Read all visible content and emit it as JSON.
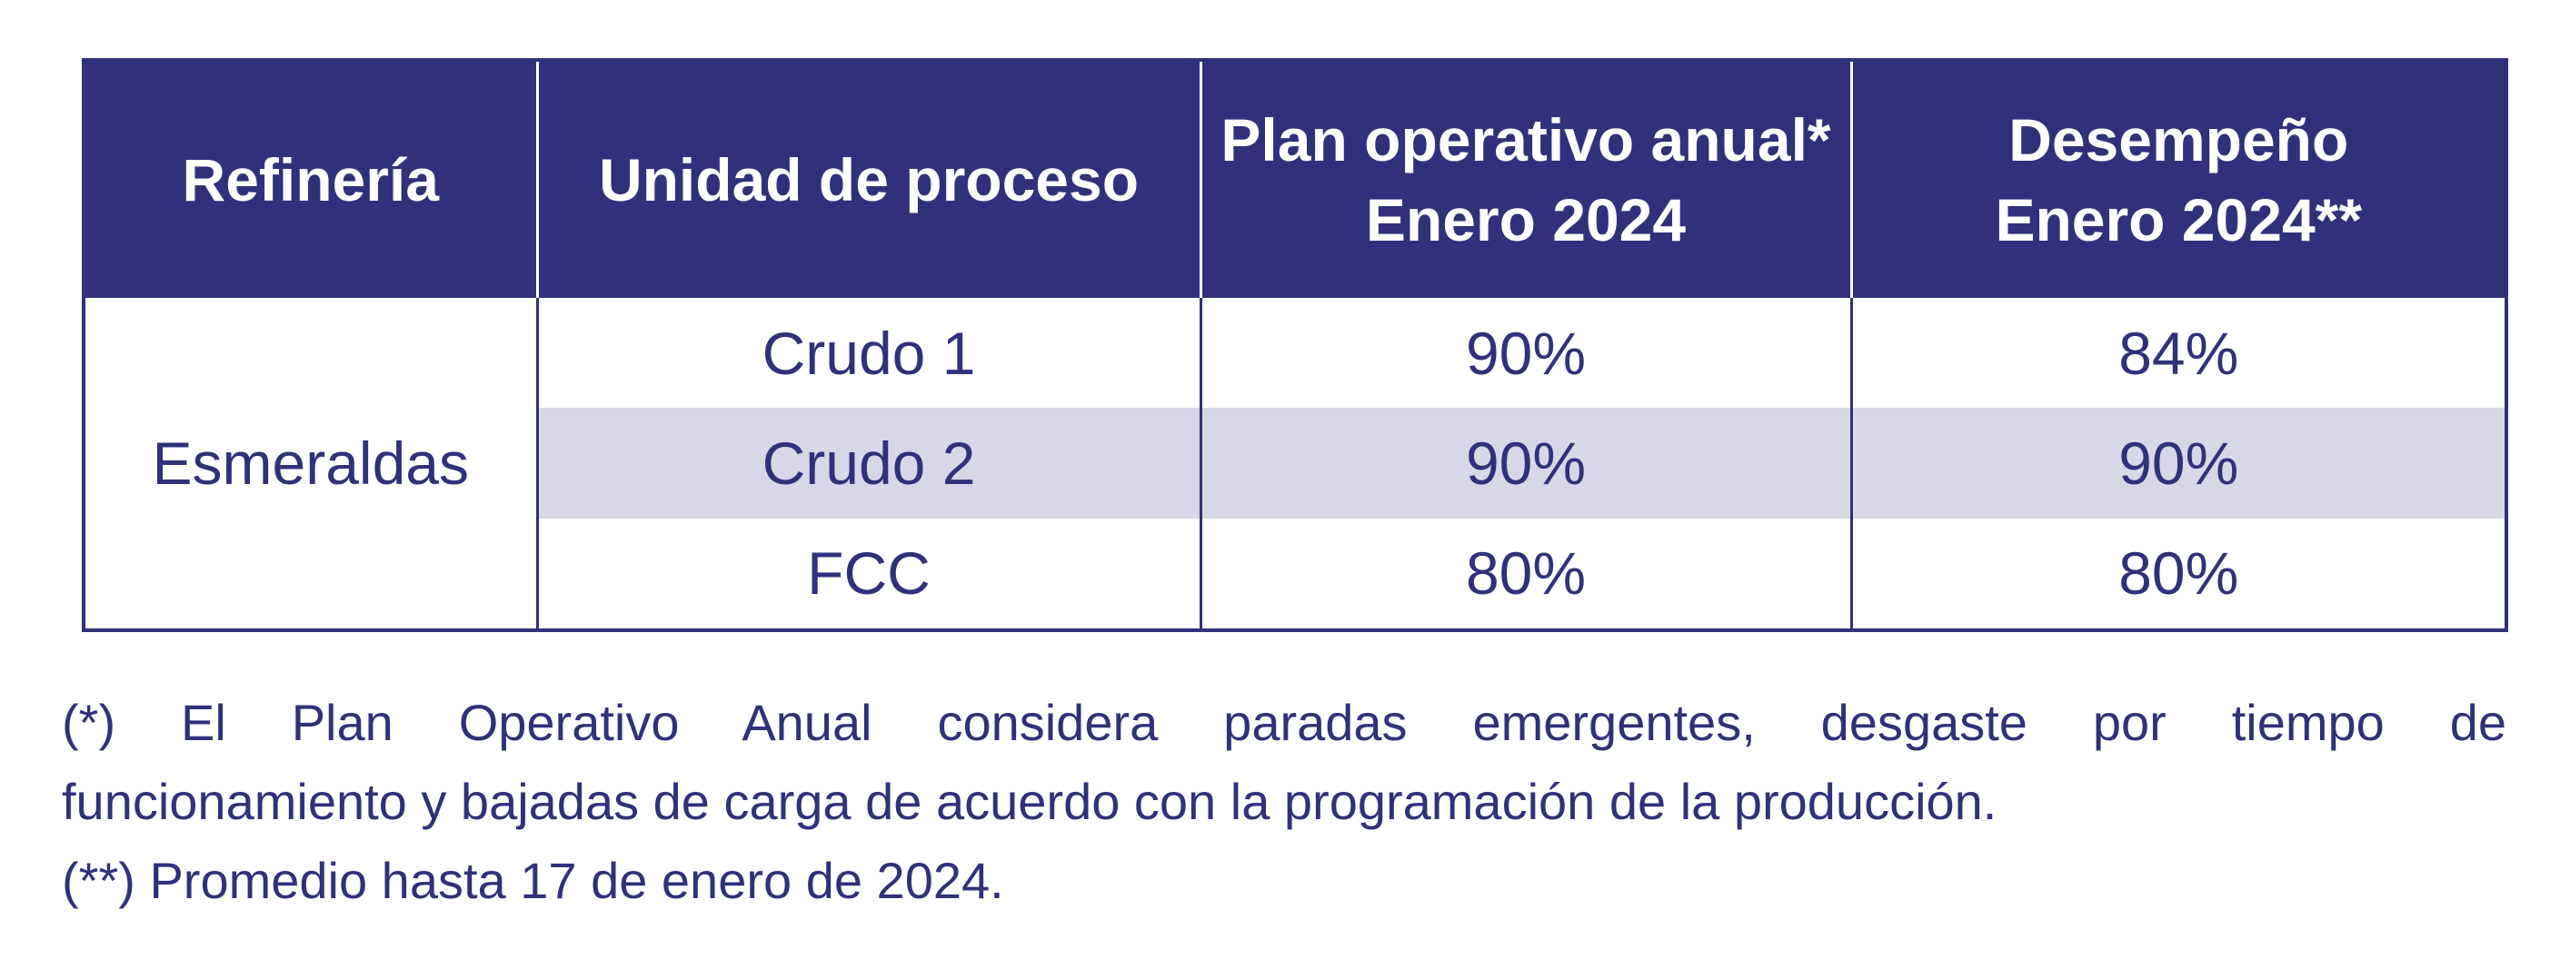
{
  "table": {
    "headers": [
      {
        "lines": [
          "Refinería"
        ]
      },
      {
        "lines": [
          "Unidad de proceso"
        ]
      },
      {
        "lines": [
          "Plan operativo anual*",
          "Enero 2024"
        ]
      },
      {
        "lines": [
          "Desempeño",
          "Enero 2024**"
        ]
      }
    ],
    "refinery": "Esmeraldas",
    "rows": [
      {
        "unit": "Crudo 1",
        "plan": "90%",
        "performance": "84%"
      },
      {
        "unit": "Crudo 2",
        "plan": "90%",
        "performance": "90%"
      },
      {
        "unit": "FCC",
        "plan": "80%",
        "performance": "80%"
      }
    ]
  },
  "footnotes": {
    "note1_line1": "(*) El Plan Operativo Anual considera paradas emergentes, desgaste por tiempo de",
    "note1_line2": "funcionamiento y bajadas de carga de acuerdo con la programación de la producción.",
    "note2": "(**) Promedio hasta 17 de enero de 2024."
  },
  "colors": {
    "header_bg": "#30317a",
    "text": "#30317a",
    "row_shade": "#d7d7e6"
  }
}
